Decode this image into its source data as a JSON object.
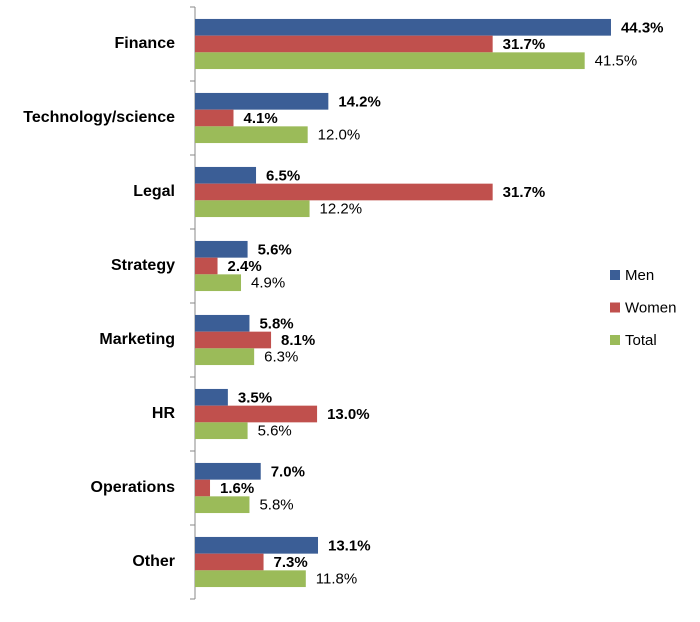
{
  "chart_data": {
    "type": "bar",
    "orientation": "horizontal",
    "legend": "right",
    "categories": [
      "Finance",
      "Technology/science",
      "Legal",
      "Strategy",
      "Marketing",
      "HR",
      "Operations",
      "Other"
    ],
    "series": [
      {
        "name": "Men",
        "color": "#3b5e96",
        "values": [
          44.3,
          14.2,
          6.5,
          5.6,
          5.8,
          3.5,
          7.0,
          13.1
        ],
        "value_labels": [
          "44.3%",
          "14.2%",
          "6.5%",
          "5.6%",
          "5.8%",
          "3.5%",
          "7.0%",
          "13.1%"
        ]
      },
      {
        "name": "Women",
        "color": "#c0504d",
        "values": [
          31.7,
          4.1,
          31.7,
          2.4,
          8.1,
          13.0,
          1.6,
          7.3
        ],
        "value_labels": [
          "31.7%",
          "4.1%",
          "31.7%",
          "2.4%",
          "8.1%",
          "13.0%",
          "1.6%",
          "7.3%"
        ]
      },
      {
        "name": "Total",
        "color": "#9bbb59",
        "values": [
          41.5,
          12.0,
          12.2,
          4.9,
          6.3,
          5.6,
          5.8,
          11.8
        ],
        "value_labels": [
          "41.5%",
          "12.0%",
          "12.2%",
          "4.9%",
          "6.3%",
          "5.6%",
          "5.8%",
          "11.8%"
        ]
      }
    ]
  }
}
